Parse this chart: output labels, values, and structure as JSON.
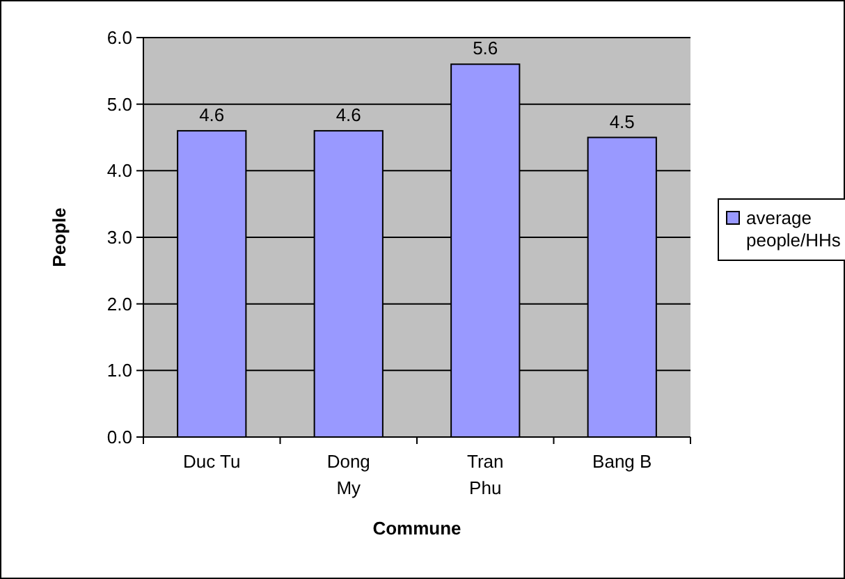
{
  "chart_data": {
    "type": "bar",
    "categories": [
      "Duc Tu",
      "Dong My",
      "Tran Phu",
      "Bang B"
    ],
    "series": [
      {
        "name": "average people/HHs",
        "color": "#9999ff",
        "values": [
          4.6,
          4.6,
          5.6,
          4.5
        ]
      }
    ],
    "xlabel": "Commune",
    "ylabel": "People",
    "ylim": [
      0,
      6
    ],
    "yticks": [
      {
        "value": 0,
        "label": "0.0"
      },
      {
        "value": 1,
        "label": "1.0"
      },
      {
        "value": 2,
        "label": "2.0"
      },
      {
        "value": 3,
        "label": "3.0"
      },
      {
        "value": 4,
        "label": "4.0"
      },
      {
        "value": 5,
        "label": "5.0"
      },
      {
        "value": 6,
        "label": "6.0"
      }
    ],
    "grid": "y",
    "legend": "right",
    "data_labels": true
  }
}
